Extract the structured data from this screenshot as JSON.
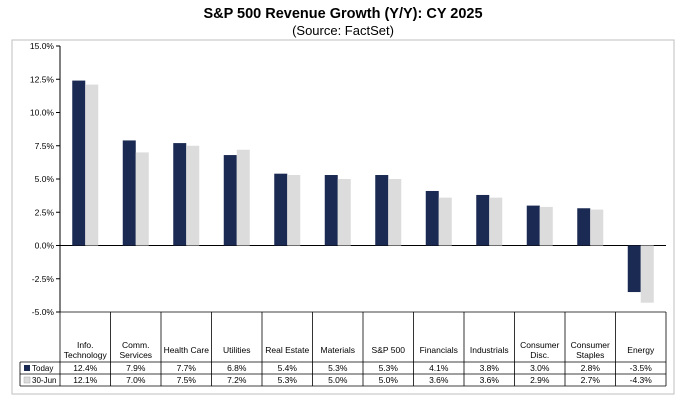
{
  "chart_data": {
    "type": "bar",
    "title": "S&P 500 Revenue Growth (Y/Y): CY 2025",
    "subtitle": "(Source: FactSet)",
    "xlabel": "",
    "ylabel": "",
    "ylim": [
      -5.0,
      15.0
    ],
    "yticks": [
      "15.0%",
      "12.5%",
      "10.0%",
      "7.5%",
      "5.0%",
      "2.5%",
      "0.0%",
      "-2.5%",
      "-5.0%"
    ],
    "grid": false,
    "legend": "table-left",
    "categories": [
      [
        "Info.",
        "Technology"
      ],
      [
        "Comm.",
        "Services"
      ],
      [
        "Health Care"
      ],
      [
        "Utilities"
      ],
      [
        "Real Estate"
      ],
      [
        "Materials"
      ],
      [
        "S&P 500"
      ],
      [
        "Financials"
      ],
      [
        "Industrials"
      ],
      [
        "Consumer",
        "Disc."
      ],
      [
        "Consumer",
        "Staples"
      ],
      [
        "Energy"
      ]
    ],
    "series": [
      {
        "name": "Today",
        "color": "#1b2a52",
        "values": [
          12.4,
          7.9,
          7.7,
          6.8,
          5.4,
          5.3,
          5.3,
          4.1,
          3.8,
          3.0,
          2.8,
          -3.5
        ],
        "labels": [
          "12.4%",
          "7.9%",
          "7.7%",
          "6.8%",
          "5.4%",
          "5.3%",
          "5.3%",
          "4.1%",
          "3.8%",
          "3.0%",
          "2.8%",
          "-3.5%"
        ]
      },
      {
        "name": "30-Jun",
        "color": "#dcdcdc",
        "values": [
          12.1,
          7.0,
          7.5,
          7.2,
          5.3,
          5.0,
          5.0,
          3.6,
          3.6,
          2.9,
          2.7,
          -4.3
        ],
        "labels": [
          "12.1%",
          "7.0%",
          "7.5%",
          "7.2%",
          "5.3%",
          "5.0%",
          "5.0%",
          "3.6%",
          "3.6%",
          "2.9%",
          "2.7%",
          "-4.3%"
        ]
      }
    ]
  }
}
